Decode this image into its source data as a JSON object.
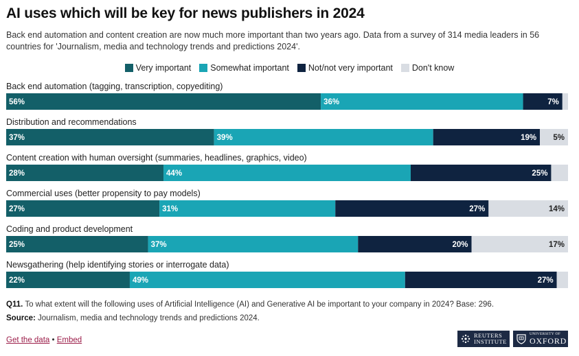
{
  "title": "AI uses which will be key for news publishers in 2024",
  "subtitle": "Back end automation and content creation are now much more important than two years ago. Data from a survey of 314 media leaders in 56 countries for 'Journalism, media and technology trends and predictions 2024'.",
  "colors": {
    "very_important": "#135f68",
    "somewhat_important": "#1aa5b5",
    "not_very_important": "#0f2340",
    "dont_know": "#d9dde3"
  },
  "chart_data": {
    "type": "bar",
    "orientation": "horizontal",
    "stacked": true,
    "legend_position": "top",
    "categories": [
      "Back end automation (tagging, transcription, copyediting)",
      "Distribution and recommendations",
      "Content creation with human oversight (summaries, headlines, graphics, video)",
      "Commercial uses (better propensity to pay models)",
      "Coding and product development",
      "Newsgathering (help identifying stories or interrogate data)"
    ],
    "series": [
      {
        "name": "Very important",
        "values": [
          56,
          37,
          28,
          27,
          25,
          22
        ]
      },
      {
        "name": "Somewhat important",
        "values": [
          36,
          39,
          44,
          31,
          37,
          49
        ]
      },
      {
        "name": "Not/not very important",
        "values": [
          7,
          19,
          25,
          27,
          20,
          27
        ]
      },
      {
        "name": "Don't know",
        "values": [
          1,
          5,
          3,
          14,
          17,
          2
        ]
      }
    ],
    "shown_labels": [
      [
        "56%",
        "36%",
        "7%",
        ""
      ],
      [
        "37%",
        "39%",
        "19%",
        "5%"
      ],
      [
        "28%",
        "44%",
        "25%",
        ""
      ],
      [
        "27%",
        "31%",
        "27%",
        "14%"
      ],
      [
        "25%",
        "37%",
        "20%",
        "17%"
      ],
      [
        "22%",
        "49%",
        "27%",
        ""
      ]
    ],
    "xlim": [
      0,
      100
    ]
  },
  "question": {
    "label": "Q11.",
    "text": "To what extent will the following uses of Artificial Intelligence (AI) and Generative AI be important to your company in 2024? Base: 296."
  },
  "source": {
    "label": "Source:",
    "text": "Journalism, media and technology trends and predictions 2024."
  },
  "links": {
    "get_data": "Get the data",
    "separator": "•",
    "embed": "Embed"
  },
  "logos": {
    "reuters_line1": "REUTERS",
    "reuters_line2": "INSTITUTE",
    "oxford_line1": "UNIVERSITY OF",
    "oxford_line2": "OXFORD"
  }
}
